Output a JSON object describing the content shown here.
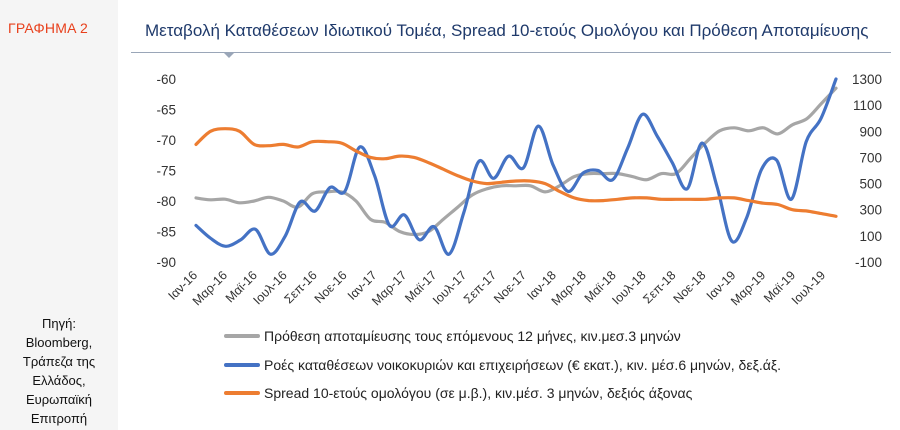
{
  "figure_label": "ΓΡΑΦΗΜΑ 2",
  "source_lines": [
    "Πηγή:",
    "Bloomberg,",
    "Τράπεζα της",
    "Ελλάδος,",
    "Ευρωπαϊκή",
    "Επιτροπή"
  ],
  "colors": {
    "grey": "#a6a6a6",
    "blue": "#4472c4",
    "orange": "#ed7d31",
    "title": "#1f3a6b",
    "label_red": "#e8401c"
  },
  "chart_data": {
    "type": "line",
    "title": "Μεταβολή Καταθέσεων Ιδιωτικού Τομέα, Spread 10-ετούς Ομολόγου και Πρόθεση Αποταμίευσης",
    "x_tick_labels": [
      "Ιαν-16",
      "Μαρ-16",
      "Μαϊ-16",
      "Ιουλ-16",
      "Σεπ-16",
      "Νοε-16",
      "Ιαν-17",
      "Μαρ-17",
      "Μαϊ-17",
      "Ιουλ-17",
      "Σεπ-17",
      "Νοε-17",
      "Ιαν-18",
      "Μαρ-18",
      "Μαϊ-18",
      "Ιουλ-18",
      "Σεπ-18",
      "Νοε-18",
      "Ιαν-19",
      "Μαρ-19",
      "Μαϊ-19",
      "Ιουλ-19"
    ],
    "left_axis": {
      "min": -90,
      "max": -60,
      "ticks": [
        -60,
        -65,
        -70,
        -75,
        -80,
        -85,
        -90
      ]
    },
    "right_axis": {
      "min": -100,
      "max": 1300,
      "ticks": [
        1300,
        1100,
        900,
        700,
        500,
        300,
        100,
        -100
      ]
    },
    "grid": false,
    "legend_position": "bottom",
    "series": [
      {
        "name": "Πρόθεση αποταμίευσης τους επόμενους 12 μήνες, κιν.μεσ.3 μηνών",
        "axis": "left",
        "color": "#a6a6a6",
        "values": [
          -79.5,
          -79.8,
          -79.7,
          -80.3,
          -80.0,
          -79.4,
          -80.0,
          -81.0,
          -78.8,
          -78.5,
          -78.5,
          -80.0,
          -83.0,
          -83.5,
          -85.0,
          -85.5,
          -85.0,
          -83.0,
          -81.0,
          -79.0,
          -78.0,
          -77.5,
          -77.5,
          -77.5,
          -78.5,
          -77.5,
          -76.0,
          -75.5,
          -75.5,
          -75.5,
          -76.0,
          -76.5,
          -75.5,
          -75.5,
          -73.0,
          -70.5,
          -68.5,
          -68.0,
          -68.5,
          -68.0,
          -69.0,
          -67.5,
          -66.5,
          -64.0,
          -61.5
        ]
      },
      {
        "name": "Ροές καταθέσεων νοικοκυριών και επιχειρήσεων (€ εκατ.), κιν. μέσ.6 μηνών, δεξ.άξ.",
        "axis": "right",
        "color": "#4472c4",
        "values": [
          180,
          80,
          20,
          70,
          150,
          -40,
          100,
          360,
          290,
          470,
          440,
          780,
          560,
          180,
          260,
          70,
          170,
          -40,
          280,
          670,
          540,
          710,
          620,
          940,
          640,
          440,
          580,
          600,
          530,
          770,
          1030,
          860,
          660,
          460,
          810,
          480,
          60,
          240,
          610,
          680,
          380,
          820,
          1000,
          1300
        ]
      },
      {
        "name": "Spread 10-ετούς ομολόγου (σε μ.β.), κιν.μέσ. 3 μηνών, δεξιός άξονας",
        "axis": "right",
        "color": "#ed7d31",
        "values": [
          800,
          900,
          920,
          900,
          800,
          790,
          800,
          780,
          820,
          820,
          810,
          750,
          700,
          690,
          710,
          700,
          660,
          610,
          560,
          520,
          500,
          510,
          520,
          520,
          500,
          440,
          390,
          370,
          370,
          380,
          390,
          390,
          380,
          380,
          380,
          380,
          390,
          390,
          370,
          350,
          340,
          300,
          290,
          270,
          250
        ]
      }
    ]
  }
}
